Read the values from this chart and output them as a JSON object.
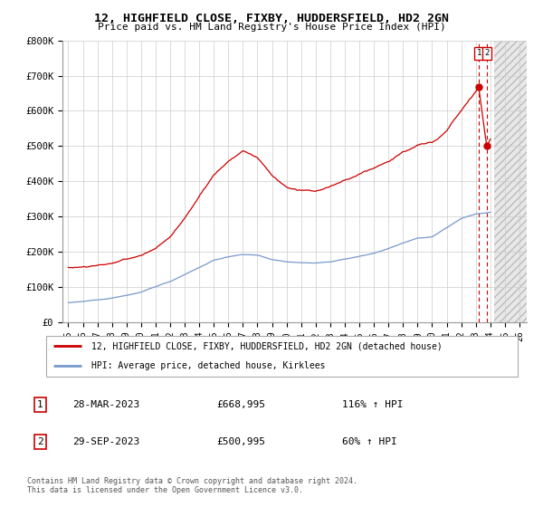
{
  "title": "12, HIGHFIELD CLOSE, FIXBY, HUDDERSFIELD, HD2 2GN",
  "subtitle": "Price paid vs. HM Land Registry's House Price Index (HPI)",
  "ylim": [
    0,
    800000
  ],
  "yticks": [
    0,
    100000,
    200000,
    300000,
    400000,
    500000,
    600000,
    700000,
    800000
  ],
  "ytick_labels": [
    "£0",
    "£100K",
    "£200K",
    "£300K",
    "£400K",
    "£500K",
    "£600K",
    "£700K",
    "£800K"
  ],
  "xticks": [
    1995,
    1996,
    1997,
    1998,
    1999,
    2000,
    2001,
    2002,
    2003,
    2004,
    2005,
    2006,
    2007,
    2008,
    2009,
    2010,
    2011,
    2012,
    2013,
    2014,
    2015,
    2016,
    2017,
    2018,
    2019,
    2020,
    2021,
    2022,
    2023,
    2024,
    2025,
    2026
  ],
  "hpi_color": "#7799cc",
  "price_color": "#cc0000",
  "sale1_date": 2023.23,
  "sale1_price": 668995,
  "sale2_date": 2023.75,
  "sale2_price": 500995,
  "legend_line1": "12, HIGHFIELD CLOSE, FIXBY, HUDDERSFIELD, HD2 2GN (detached house)",
  "legend_line2": "HPI: Average price, detached house, Kirklees",
  "table_row1_num": "1",
  "table_row1_date": "28-MAR-2023",
  "table_row1_price": "£668,995",
  "table_row1_hpi": "116% ↑ HPI",
  "table_row2_num": "2",
  "table_row2_date": "29-SEP-2023",
  "table_row2_price": "£500,995",
  "table_row2_hpi": "60% ↑ HPI",
  "footnote": "Contains HM Land Registry data © Crown copyright and database right 2024.\nThis data is licensed under the Open Government Licence v3.0.",
  "background_color": "#ffffff",
  "hpi_knots_x": [
    1995,
    1996,
    1997,
    1998,
    1999,
    2000,
    2001,
    2002,
    2003,
    2004,
    2005,
    2006,
    2007,
    2008,
    2009,
    2010,
    2011,
    2012,
    2013,
    2014,
    2015,
    2016,
    2017,
    2018,
    2019,
    2020,
    2021,
    2022,
    2023,
    2024
  ],
  "hpi_knots_y": [
    55000,
    57000,
    62000,
    68000,
    76000,
    85000,
    100000,
    115000,
    135000,
    155000,
    175000,
    185000,
    192000,
    190000,
    178000,
    172000,
    170000,
    170000,
    173000,
    180000,
    188000,
    196000,
    210000,
    225000,
    238000,
    242000,
    268000,
    295000,
    308000,
    312000
  ],
  "price_knots_x": [
    1995,
    1996,
    1997,
    1998,
    1999,
    2000,
    2001,
    2002,
    2003,
    2004,
    2005,
    2006,
    2007,
    2008,
    2009,
    2010,
    2011,
    2012,
    2013,
    2014,
    2015,
    2016,
    2017,
    2018,
    2019,
    2020,
    2021,
    2022,
    2023.2,
    2023.75,
    2024
  ],
  "price_knots_y": [
    155000,
    158000,
    163000,
    170000,
    178000,
    190000,
    210000,
    245000,
    295000,
    360000,
    420000,
    460000,
    490000,
    470000,
    420000,
    385000,
    375000,
    370000,
    385000,
    400000,
    415000,
    435000,
    455000,
    480000,
    500000,
    505000,
    540000,
    600000,
    668995,
    500995,
    520000
  ]
}
